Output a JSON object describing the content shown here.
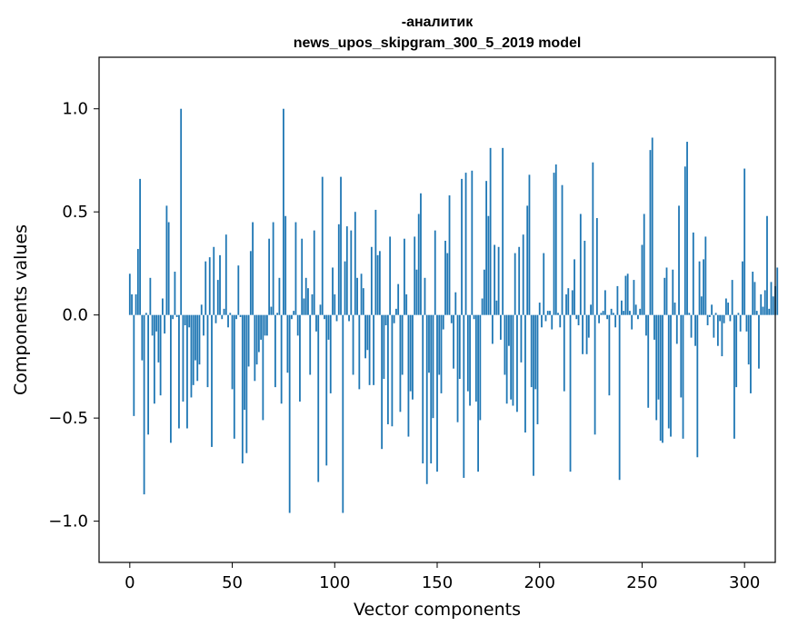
{
  "chart_data": {
    "type": "bar",
    "title_line1": "-аналитик",
    "title_line2": "news_upos_skipgram_300_5_2019 model",
    "xlabel": "Vector components",
    "ylabel": "Components values",
    "xlim": [
      -15,
      315
    ],
    "ylim": [
      -1.2,
      1.25
    ],
    "x_ticks": [
      0,
      50,
      100,
      150,
      200,
      250,
      300
    ],
    "x_tick_labels": [
      "0",
      "50",
      "100",
      "150",
      "200",
      "250",
      "300"
    ],
    "y_ticks": [
      -1.0,
      -0.5,
      0.0,
      0.5,
      1.0
    ],
    "y_tick_labels": [
      "−1.0",
      "−0.5",
      "0.0",
      "0.5",
      "1.0"
    ],
    "bar_color": "#1f77b4",
    "grid": false,
    "values": [
      0.2,
      0.1,
      -0.49,
      0.1,
      0.32,
      0.66,
      -0.22,
      -0.87,
      0.01,
      -0.58,
      0.18,
      -0.1,
      -0.43,
      -0.08,
      -0.23,
      -0.39,
      0.08,
      -0.09,
      0.53,
      0.45,
      -0.62,
      -0.02,
      0.21,
      -0.01,
      -0.55,
      1.0,
      -0.42,
      -0.05,
      -0.55,
      -0.06,
      -0.4,
      -0.34,
      -0.22,
      -0.32,
      -0.24,
      0.05,
      -0.1,
      0.26,
      -0.35,
      0.28,
      -0.64,
      0.33,
      -0.04,
      0.17,
      0.29,
      -0.02,
      0.03,
      0.39,
      -0.06,
      0.01,
      -0.36,
      -0.6,
      -0.02,
      0.24,
      -0.01,
      -0.72,
      -0.46,
      -0.67,
      -0.25,
      0.31,
      0.45,
      -0.32,
      -0.24,
      -0.18,
      -0.12,
      -0.51,
      -0.1,
      -0.1,
      0.37,
      0.04,
      0.45,
      -0.35,
      0.01,
      0.18,
      -0.43,
      1.0,
      0.48,
      -0.28,
      -0.96,
      -0.02,
      0.02,
      0.45,
      -0.1,
      -0.42,
      0.37,
      0.08,
      0.18,
      0.13,
      -0.29,
      0.1,
      0.41,
      -0.08,
      -0.81,
      0.05,
      0.67,
      -0.02,
      -0.73,
      -0.12,
      -0.38,
      0.23,
      0.1,
      -0.03,
      0.44,
      0.67,
      -0.96,
      0.26,
      0.43,
      -0.03,
      0.41,
      -0.29,
      0.5,
      0.18,
      -0.36,
      0.2,
      0.13,
      -0.21,
      -0.17,
      -0.34,
      0.33,
      -0.34,
      0.51,
      0.29,
      0.31,
      -0.65,
      -0.31,
      -0.05,
      -0.53,
      0.38,
      -0.54,
      -0.04,
      0.03,
      0.15,
      -0.47,
      -0.29,
      0.37,
      0.1,
      -0.59,
      -0.37,
      -0.41,
      0.38,
      0.22,
      0.49,
      0.59,
      -0.72,
      0.18,
      -0.82,
      -0.28,
      -0.72,
      -0.5,
      0.41,
      -0.76,
      -0.29,
      -0.38,
      -0.07,
      0.36,
      0.3,
      0.58,
      -0.04,
      -0.26,
      0.11,
      -0.52,
      -0.31,
      0.66,
      -0.79,
      0.69,
      -0.37,
      -0.44,
      0.7,
      -0.02,
      -0.42,
      -0.76,
      -0.51,
      0.08,
      0.22,
      0.65,
      0.48,
      0.81,
      -0.14,
      0.34,
      0.07,
      0.33,
      -0.12,
      0.81,
      -0.29,
      -0.43,
      -0.15,
      -0.41,
      -0.44,
      0.3,
      -0.47,
      0.33,
      -0.23,
      0.39,
      -0.57,
      0.53,
      0.68,
      -0.35,
      -0.78,
      -0.36,
      -0.53,
      0.06,
      -0.06,
      0.3,
      -0.03,
      0.02,
      0.02,
      -0.07,
      0.69,
      0.73,
      0.01,
      -0.06,
      0.63,
      -0.37,
      0.1,
      0.13,
      -0.76,
      0.12,
      0.27,
      -0.02,
      -0.05,
      0.49,
      -0.19,
      0.36,
      -0.19,
      -0.11,
      0.05,
      0.74,
      -0.58,
      0.47,
      -0.04,
      0.01,
      0.02,
      0.12,
      -0.02,
      -0.39,
      0.03,
      0.01,
      -0.06,
      0.14,
      -0.8,
      0.07,
      0.02,
      0.19,
      0.2,
      0.02,
      -0.07,
      0.17,
      0.05,
      -0.02,
      0.03,
      0.34,
      0.49,
      -0.1,
      -0.45,
      0.8,
      0.86,
      -0.12,
      -0.51,
      -0.41,
      -0.61,
      -0.62,
      0.18,
      0.23,
      -0.55,
      -0.59,
      0.22,
      0.06,
      -0.14,
      0.53,
      -0.4,
      -0.6,
      0.72,
      0.84,
      0.01,
      -0.11,
      0.4,
      -0.15,
      -0.69,
      0.26,
      0.09,
      0.27,
      0.38,
      -0.05,
      -0.01,
      0.05,
      -0.11,
      0.01,
      -0.15,
      -0.03,
      -0.2,
      -0.04,
      0.08,
      0.06,
      -0.03,
      0.17,
      -0.6,
      -0.35,
      0.01,
      -0.08,
      0.26,
      0.71,
      -0.08,
      -0.24,
      -0.38,
      0.21,
      0.16,
      0.02,
      -0.26,
      0.1,
      0.04,
      0.12,
      0.48,
      0.03,
      0.16,
      0.09,
      0.14,
      0.23
    ]
  }
}
